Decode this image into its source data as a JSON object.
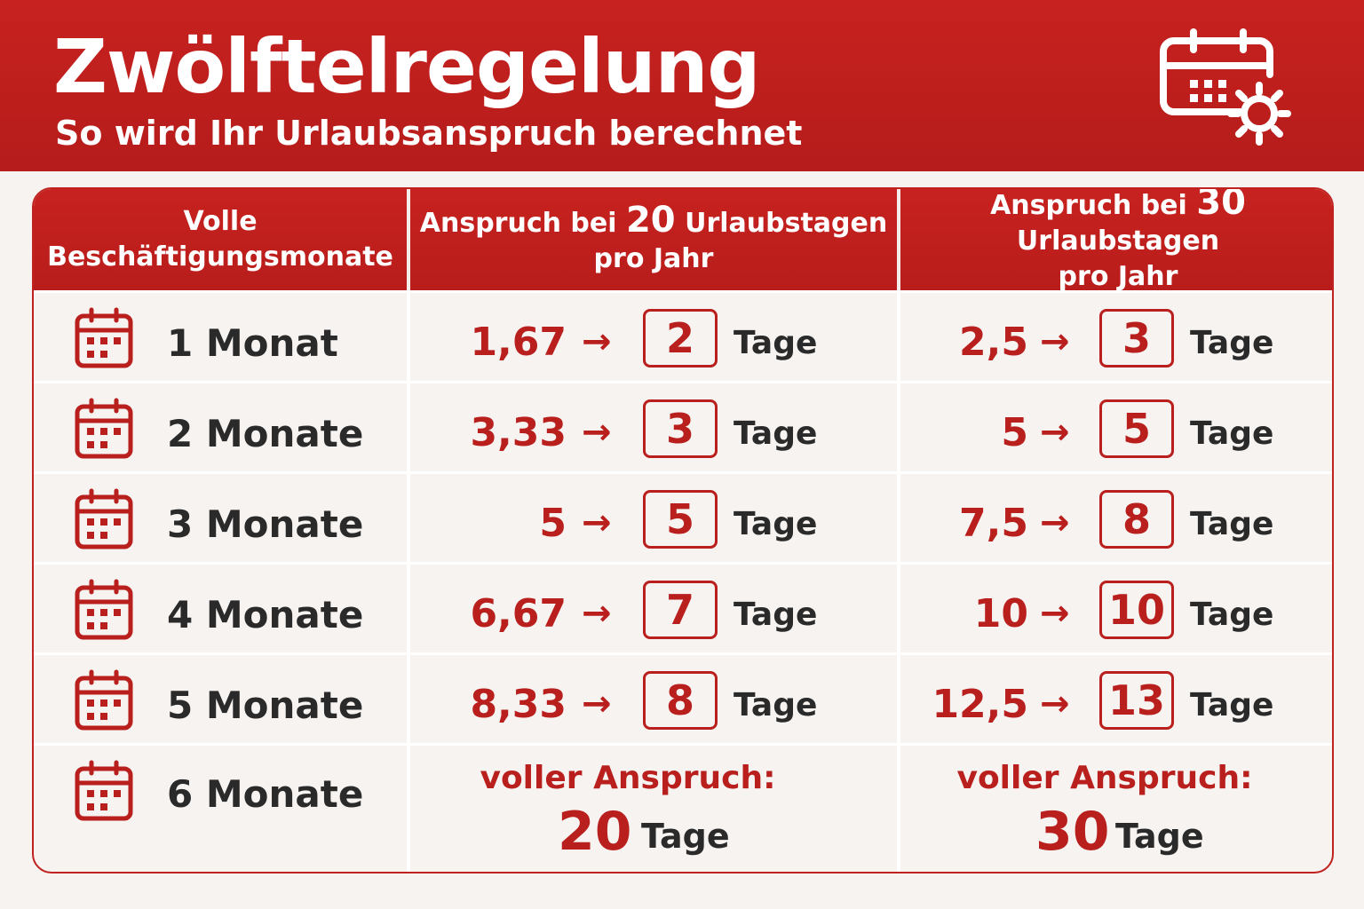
{
  "header": {
    "title": "Zwölftelregelung",
    "subtitle": "So wird Ihr Urlaubsanspruch berechnet",
    "icon": "calendar-sun-icon"
  },
  "table": {
    "columns": {
      "months": {
        "line1": "Volle",
        "line2": "Beschäftigungsmonate"
      },
      "twenty": {
        "prefix": "Anspruch bei",
        "days": "20",
        "suffix": "Urlaubstagen",
        "line2": "pro Jahr"
      },
      "thirty": {
        "prefix": "Anspruch bei",
        "days": "30",
        "suffix": "Urlaubstagen",
        "line2": "pro Jahr"
      }
    },
    "rows": [
      {
        "month": "1 Monat",
        "v20": "1,67",
        "r20": "2",
        "v30": "2,5",
        "r30": "3",
        "unit": "Tage"
      },
      {
        "month": "2 Monate",
        "v20": "3,33",
        "r20": "3",
        "v30": "5",
        "r30": "5",
        "unit": "Tage"
      },
      {
        "month": "3 Monate",
        "v20": "5",
        "r20": "5",
        "v30": "7,5",
        "r30": "8",
        "unit": "Tage"
      },
      {
        "month": "4 Monate",
        "v20": "6,67",
        "r20": "7",
        "v30": "10",
        "r30": "10",
        "unit": "Tage"
      },
      {
        "month": "5 Monate",
        "v20": "8,33",
        "r20": "8",
        "v30": "12,5",
        "r30": "13",
        "unit": "Tage"
      }
    ],
    "last_row": {
      "month": "6 Monate",
      "full_label": "voller Anspruch:",
      "full20": "20",
      "full30": "30",
      "unit": "Tage"
    },
    "arrow": "→",
    "row_icon": "calendar-icon"
  },
  "colors": {
    "accent": "#b81f1d",
    "header": "#c7221f",
    "text": "#2a2a2a",
    "background": "#f6f3f1"
  }
}
